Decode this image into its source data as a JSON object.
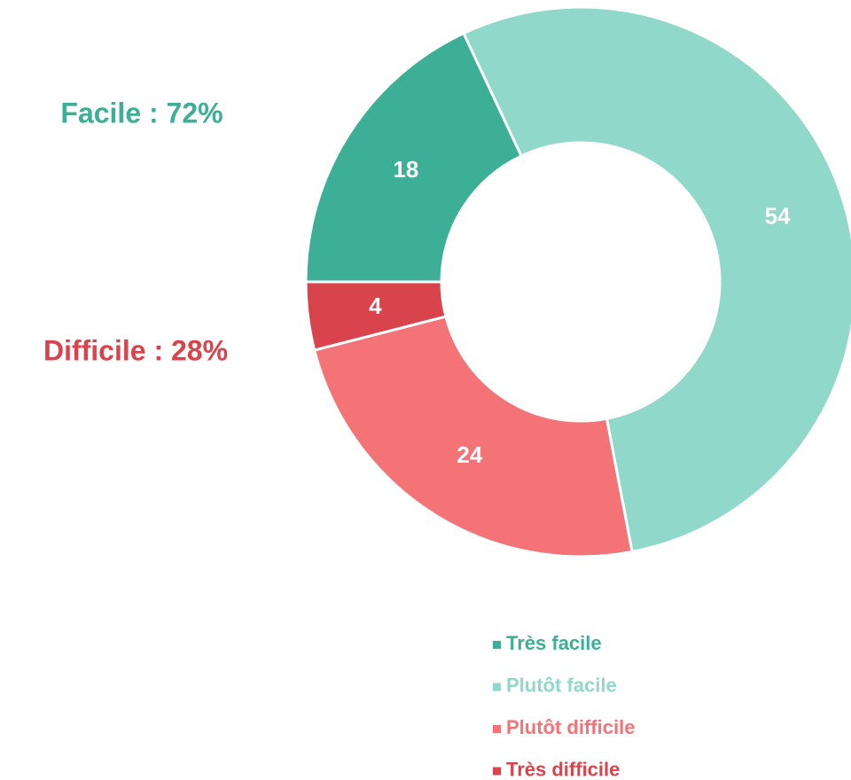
{
  "chart_data": {
    "type": "donut",
    "start_angle": 270,
    "categories": [
      "Très facile",
      "Plutôt facile",
      "Plutôt difficile",
      "Très difficile"
    ],
    "values": [
      18,
      54,
      24,
      4
    ],
    "colors": [
      "#3daf96",
      "#8fd8ca",
      "#f37377",
      "#d9434b"
    ],
    "annotations": [
      {
        "text": "Facile : 72%",
        "color": "#3daf96"
      },
      {
        "text": "Difficile : 28%",
        "color": "#d9434b"
      }
    ],
    "legend": "bottom-right"
  }
}
